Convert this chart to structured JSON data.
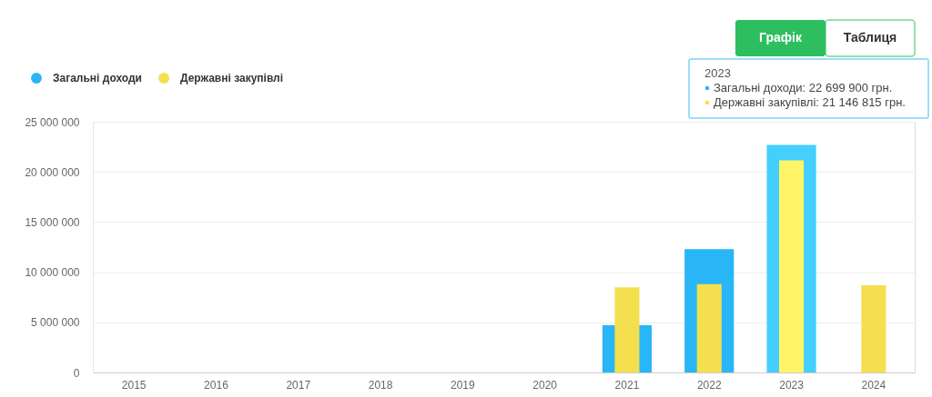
{
  "chart_data": {
    "type": "bar",
    "categories": [
      "2015",
      "2016",
      "2017",
      "2018",
      "2019",
      "2020",
      "2021",
      "2022",
      "2023",
      "2024"
    ],
    "series": [
      {
        "name": "Загальні доходи",
        "color": "#29b6f6",
        "colors": [
          null,
          null,
          null,
          null,
          null,
          null,
          "#29b6f6",
          "#29b6f6",
          "#44cfff",
          null
        ],
        "values": [
          null,
          null,
          null,
          null,
          null,
          null,
          4700000,
          12300000,
          22699900,
          null
        ]
      },
      {
        "name": "Державні закупівлі",
        "color": "#f4e04f",
        "colors": [
          null,
          null,
          null,
          null,
          null,
          null,
          "#f4e04f",
          "#f4e04f",
          "#fff566",
          "#f4e04f"
        ],
        "values": [
          null,
          null,
          null,
          null,
          null,
          null,
          8500000,
          8800000,
          21146815,
          8700000
        ]
      }
    ],
    "ylim": [
      0,
      25000000
    ],
    "yticks": [
      0,
      {
        "value": 5000000,
        "label": "5 000 000"
      },
      {
        "value": 10000000,
        "label": "10 000 000"
      },
      {
        "value": 15000000,
        "label": "15 000 000"
      },
      {
        "value": 20000000,
        "label": "20 000 000"
      },
      {
        "value": 25000000,
        "label": "25 000 000"
      }
    ],
    "grid": "y",
    "legend": "top left",
    "annotations": [
      "Графік",
      "Таблиця",
      "2023",
      "Загальні доходи: 22 699 900 грн.",
      "Державні закупівлі: 21 146 815 грн."
    ]
  }
}
